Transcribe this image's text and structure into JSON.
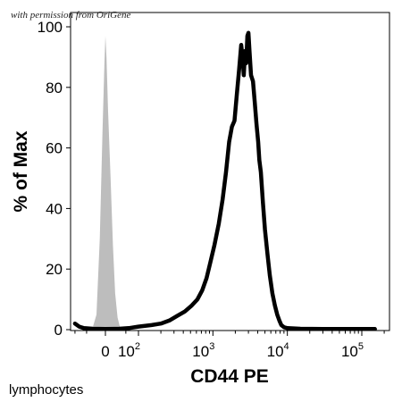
{
  "watermark": "with permission from OriGene",
  "footnote": "lymphocytes",
  "chart_data": {
    "type": "histogram",
    "title": "",
    "xlabel": "CD44 PE",
    "ylabel": "% of Max",
    "x_scale": "biexponential (flow cytometry)",
    "ylim": [
      0,
      100
    ],
    "grid": false,
    "legend": "none",
    "yticks": [
      {
        "value": 0,
        "label": "0"
      },
      {
        "value": 20,
        "label": "20"
      },
      {
        "value": 40,
        "label": "40"
      },
      {
        "value": 60,
        "label": "60"
      },
      {
        "value": 80,
        "label": "80"
      },
      {
        "value": 100,
        "label": "100"
      }
    ],
    "xticks": [
      {
        "value": 0,
        "base": "0",
        "exp": ""
      },
      {
        "value": 100,
        "base": "10",
        "exp": "2"
      },
      {
        "value": 1000,
        "base": "10",
        "exp": "3"
      },
      {
        "value": 10000,
        "base": "10",
        "exp": "4"
      },
      {
        "value": 100000,
        "base": "10",
        "exp": "5"
      }
    ],
    "series": [
      {
        "color": "#bdbdbd",
        "style": "filled",
        "points": [
          [
            -50,
            0
          ],
          [
            -30,
            0.8
          ],
          [
            -20,
            5
          ],
          [
            -12,
            30
          ],
          [
            -6,
            65
          ],
          [
            -2,
            88
          ],
          [
            0,
            97
          ],
          [
            2,
            90
          ],
          [
            5,
            72
          ],
          [
            10,
            50
          ],
          [
            15,
            28
          ],
          [
            20,
            12
          ],
          [
            26,
            4
          ],
          [
            32,
            1
          ],
          [
            40,
            0
          ]
        ]
      },
      {
        "color": "#000000",
        "style": "outline",
        "points": [
          [
            -100,
            2
          ],
          [
            -80,
            1
          ],
          [
            -60,
            0.5
          ],
          [
            -30,
            0.3
          ],
          [
            0,
            0.2
          ],
          [
            30,
            0.3
          ],
          [
            60,
            0.5
          ],
          [
            100,
            1
          ],
          [
            150,
            1.5
          ],
          [
            200,
            2
          ],
          [
            260,
            3
          ],
          [
            330,
            4.5
          ],
          [
            420,
            6
          ],
          [
            520,
            8
          ],
          [
            620,
            10
          ],
          [
            720,
            13
          ],
          [
            820,
            17
          ],
          [
            920,
            22
          ],
          [
            1050,
            28
          ],
          [
            1200,
            35
          ],
          [
            1350,
            43
          ],
          [
            1500,
            52
          ],
          [
            1650,
            62
          ],
          [
            1800,
            67
          ],
          [
            1950,
            69
          ],
          [
            2100,
            78
          ],
          [
            2250,
            86
          ],
          [
            2400,
            94
          ],
          [
            2500,
            90
          ],
          [
            2600,
            84
          ],
          [
            2700,
            92
          ],
          [
            2800,
            88
          ],
          [
            2900,
            97
          ],
          [
            3000,
            98
          ],
          [
            3100,
            92
          ],
          [
            3250,
            84
          ],
          [
            3450,
            82
          ],
          [
            3650,
            75
          ],
          [
            3850,
            68
          ],
          [
            4050,
            62
          ],
          [
            4200,
            56
          ],
          [
            4400,
            52
          ],
          [
            4700,
            42
          ],
          [
            5000,
            33
          ],
          [
            5400,
            25
          ],
          [
            5800,
            18
          ],
          [
            6300,
            12
          ],
          [
            6800,
            8
          ],
          [
            7300,
            5
          ],
          [
            7800,
            3
          ],
          [
            8300,
            1.5
          ],
          [
            9000,
            0.8
          ],
          [
            10000,
            0.5
          ],
          [
            15000,
            0.3
          ],
          [
            30000,
            0.2
          ],
          [
            80000,
            0.2
          ],
          [
            150000,
            0.2
          ]
        ]
      }
    ]
  }
}
